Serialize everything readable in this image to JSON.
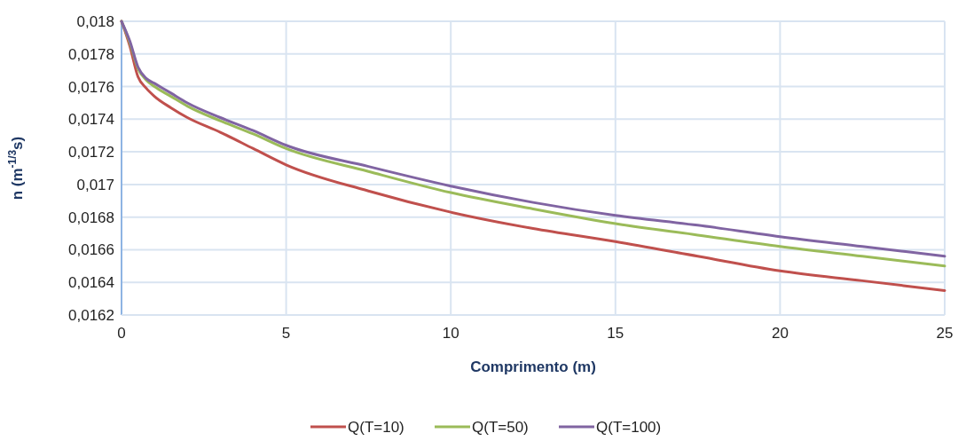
{
  "chart_data": {
    "type": "line",
    "xlabel": "Comprimento (m)",
    "ylabel": "n (m$^{-1/3}$s)",
    "x": [
      0,
      0.25,
      0.5,
      0.75,
      1,
      1.5,
      2,
      3,
      4,
      5,
      7.5,
      10,
      12.5,
      15,
      17.5,
      20,
      22.5,
      25
    ],
    "series": [
      {
        "name": "Q(T=10)",
        "color": "#c0504d",
        "values": [
          0.018,
          0.01785,
          0.01766,
          0.01759,
          0.01754,
          0.01747,
          0.01741,
          0.01732,
          0.01722,
          0.01712,
          0.01696,
          0.01683,
          0.01673,
          0.01665,
          0.01656,
          0.01647,
          0.01641,
          0.01635
        ]
      },
      {
        "name": "Q(T=50)",
        "color": "#9bbb59",
        "values": [
          0.018,
          0.01787,
          0.01771,
          0.01764,
          0.0176,
          0.01754,
          0.01748,
          0.01739,
          0.01731,
          0.01722,
          0.01708,
          0.01695,
          0.01685,
          0.01676,
          0.01669,
          0.01662,
          0.01656,
          0.0165
        ]
      },
      {
        "name": "Q(T=100)",
        "color": "#8064a2",
        "values": [
          0.018,
          0.01788,
          0.01772,
          0.01765,
          0.01762,
          0.01756,
          0.0175,
          0.01741,
          0.01733,
          0.01724,
          0.01711,
          0.01699,
          0.01689,
          0.01681,
          0.01675,
          0.01668,
          0.01662,
          0.01656
        ]
      }
    ],
    "xlim": [
      0,
      25
    ],
    "xticks": [
      0,
      5,
      10,
      15,
      20,
      25
    ],
    "ylim": [
      0.0162,
      0.018
    ],
    "yticks": [
      {
        "value": 0.0162,
        "label": "0,0162"
      },
      {
        "value": 0.0164,
        "label": "0,0164"
      },
      {
        "value": 0.0166,
        "label": "0,0166"
      },
      {
        "value": 0.0168,
        "label": "0,0168"
      },
      {
        "value": 0.017,
        "label": "0,017"
      },
      {
        "value": 0.0172,
        "label": "0,0172"
      },
      {
        "value": 0.0174,
        "label": "0,0174"
      },
      {
        "value": 0.0176,
        "label": "0,0176"
      },
      {
        "value": 0.0178,
        "label": "0,0178"
      },
      {
        "value": 0.018,
        "label": "0,018"
      }
    ],
    "grid": true,
    "legend": "bottom",
    "marker": "none",
    "line_style": "solid"
  }
}
